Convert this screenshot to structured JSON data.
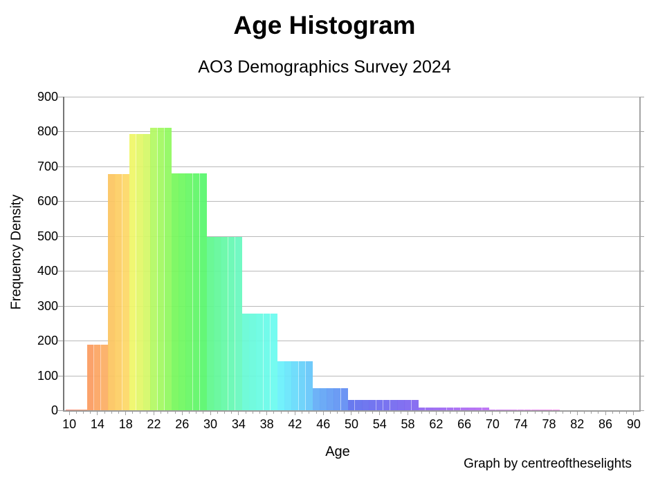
{
  "chart_data": {
    "type": "bar",
    "chart_kind": "histogram",
    "title": "Age Histogram",
    "subtitle": "AO3 Demographics Survey 2024",
    "xlabel": "Age",
    "ylabel": "Frequency Density",
    "credit": "Graph by centreoftheselights",
    "legend": false,
    "grid": "horizontal",
    "x_axis": {
      "range_ages": [
        9.3,
        90.8
      ],
      "major_ticks": [
        10,
        14,
        18,
        22,
        26,
        30,
        34,
        38,
        42,
        46,
        50,
        54,
        58,
        62,
        66,
        70,
        74,
        78,
        82,
        86,
        90
      ],
      "minor_tick_step": 1
    },
    "y_axis": {
      "range": [
        0,
        900
      ],
      "ticks": [
        0,
        100,
        200,
        300,
        400,
        500,
        600,
        700,
        800,
        900
      ]
    },
    "bins": [
      {
        "ages": "10-12",
        "age_start": 10,
        "age_end": 12,
        "frequency_density": 2,
        "color_start": "#f8816c",
        "color_end": "#fa9263"
      },
      {
        "ages": "13-15",
        "age_start": 13,
        "age_end": 15,
        "frequency_density": 188,
        "color_start": "#fb9b5f",
        "color_end": "#fcad62"
      },
      {
        "ages": "16-18",
        "age_start": 16,
        "age_end": 18,
        "frequency_density": 678,
        "color_start": "#fcc55f",
        "color_end": "#fdd765"
      },
      {
        "ages": "19-21",
        "age_start": 19,
        "age_end": 21,
        "frequency_density": 793,
        "color_start": "#eff767",
        "color_end": "#d4f766"
      },
      {
        "ages": "22-24",
        "age_start": 22,
        "age_end": 24,
        "frequency_density": 810,
        "color_start": "#b3f962",
        "color_end": "#8ff95d"
      },
      {
        "ages": "25-29",
        "age_start": 25,
        "age_end": 29,
        "frequency_density": 680,
        "color_start": "#76f85b",
        "color_end": "#57f66b"
      },
      {
        "ages": "30-34",
        "age_start": 30,
        "age_end": 34,
        "frequency_density": 498,
        "color_start": "#5ff88e",
        "color_end": "#66f9be"
      },
      {
        "ages": "35-39",
        "age_start": 35,
        "age_end": 39,
        "frequency_density": 278,
        "color_start": "#66fad5",
        "color_end": "#69fbef"
      },
      {
        "ages": "40-44",
        "age_start": 40,
        "age_end": 44,
        "frequency_density": 140,
        "color_start": "#68f0fb",
        "color_end": "#64c6fa"
      },
      {
        "ages": "45-49",
        "age_start": 45,
        "age_end": 49,
        "frequency_density": 63,
        "color_start": "#62acf7",
        "color_end": "#5f8cf3"
      },
      {
        "ages": "50-59",
        "age_start": 50,
        "age_end": 59,
        "frequency_density": 30,
        "color_start": "#5c6fee",
        "color_end": "#7f64f0"
      },
      {
        "ages": "60-69",
        "age_start": 60,
        "age_end": 69,
        "frequency_density": 8,
        "color_start": "#9166f1",
        "color_end": "#b86df3"
      },
      {
        "ages": "70-79",
        "age_start": 70,
        "age_end": 79,
        "frequency_density": 2,
        "color_start": "#cb74f4",
        "color_end": "#f285ec"
      }
    ],
    "colors": {
      "gridline": "#b9b9b9",
      "tick": "#a0a0a0",
      "spine_left": "#767676",
      "spine_right": "#a3a3a3",
      "text": "#000000",
      "background": "#ffffff"
    }
  }
}
